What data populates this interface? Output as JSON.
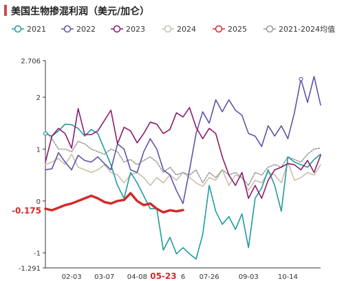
{
  "chart_data": {
    "type": "line",
    "title": "美国生物掺混利润（美元/加仑）",
    "yaxis_ticks": [
      "2.706",
      "2",
      "1",
      "0",
      "-1",
      "-1.291"
    ],
    "ylim": [
      -1.291,
      2.706
    ],
    "x_ticks": [
      "02-03",
      "03-07",
      "04-08",
      "05-23",
      "07-26",
      "09-03",
      "10-14"
    ],
    "x_ticks_partial": [
      {
        "text": "6",
        "index": 21
      }
    ],
    "highlight_x": {
      "label": "05-23",
      "index": 18
    },
    "current_value_label": "-0.175",
    "n_points": 43,
    "legend_position": "top",
    "series": [
      {
        "name": "2021",
        "color": "#1e9aa0",
        "values": [
          1.3,
          1.25,
          1.35,
          1.48,
          1.47,
          1.4,
          1.25,
          1.38,
          1.3,
          1.0,
          0.7,
          0.3,
          0.05,
          0.55,
          0.35,
          0.1,
          -0.15,
          -0.15,
          -0.95,
          -0.7,
          -1.02,
          -0.9,
          -1.02,
          -1.12,
          -0.65,
          0.3,
          -0.2,
          -0.45,
          -0.3,
          -0.55,
          -0.25,
          -0.9,
          0.05,
          0.25,
          0.6,
          0.3,
          -0.2,
          0.85,
          0.75,
          0.7,
          0.65,
          0.8,
          0.9
        ]
      },
      {
        "name": "2022",
        "color": "#5b55a6",
        "values": [
          0.6,
          0.62,
          0.93,
          0.75,
          0.6,
          0.88,
          0.78,
          0.75,
          0.85,
          0.72,
          0.6,
          1.1,
          1.0,
          0.6,
          0.55,
          0.95,
          1.2,
          1.0,
          0.6,
          0.5,
          0.2,
          -0.05,
          0.6,
          1.3,
          1.72,
          1.5,
          1.95,
          1.72,
          1.95,
          1.75,
          1.65,
          1.3,
          1.25,
          1.05,
          1.45,
          1.25,
          1.45,
          1.2,
          1.7,
          2.35,
          1.9,
          2.4,
          1.85
        ]
      },
      {
        "name": "2023",
        "color": "#8b1a6b",
        "values": [
          0.75,
          1.25,
          1.4,
          1.3,
          1.02,
          1.78,
          1.28,
          1.28,
          1.35,
          1.55,
          1.75,
          1.1,
          1.42,
          1.35,
          1.12,
          1.3,
          1.52,
          1.48,
          1.3,
          1.38,
          1.7,
          1.62,
          1.8,
          1.42,
          1.2,
          1.4,
          1.3,
          0.85,
          0.5,
          0.3,
          0.55,
          0.05,
          0.3,
          0.05,
          0.4,
          0.6,
          0.65,
          0.72,
          0.7,
          0.6,
          0.78,
          0.55,
          0.88
        ]
      },
      {
        "name": "2024",
        "color": "#cbbfa8",
        "values": [
          0.7,
          0.75,
          0.82,
          0.7,
          0.9,
          0.65,
          0.6,
          0.55,
          0.6,
          0.7,
          0.55,
          0.5,
          0.35,
          0.5,
          0.55,
          0.45,
          0.3,
          0.45,
          0.35,
          0.5,
          0.4,
          0.55,
          0.45,
          0.35,
          0.28,
          0.45,
          0.4,
          0.6,
          0.3,
          0.5,
          0.45,
          0.2,
          0.4,
          0.35,
          0.55,
          0.5,
          0.35,
          0.75,
          0.4,
          0.45,
          0.55,
          0.5,
          0.7
        ]
      },
      {
        "name": "2025",
        "color": "#d42a2a",
        "values": [
          -0.15,
          -0.18,
          -0.13,
          -0.08,
          -0.05,
          0.0,
          0.05,
          0.1,
          0.05,
          -0.02,
          -0.05,
          0.0,
          0.02,
          0.15,
          0.0,
          -0.08,
          -0.05,
          -0.15,
          -0.22,
          -0.18,
          -0.2,
          -0.175
        ]
      },
      {
        "name": "2021-2024均值",
        "color": "#9a9a9a",
        "values": [
          1.35,
          1.2,
          1.0,
          1.0,
          0.95,
          1.15,
          1.1,
          1.0,
          0.95,
          0.9,
          1.0,
          0.95,
          0.75,
          0.8,
          0.7,
          0.78,
          0.85,
          0.75,
          0.55,
          0.65,
          0.5,
          0.55,
          0.5,
          0.6,
          0.35,
          0.55,
          0.45,
          0.6,
          0.5,
          0.55,
          0.45,
          0.3,
          0.55,
          0.5,
          0.65,
          0.7,
          0.65,
          0.85,
          0.8,
          0.75,
          0.9,
          1.0,
          1.02
        ]
      }
    ],
    "grid": false
  }
}
